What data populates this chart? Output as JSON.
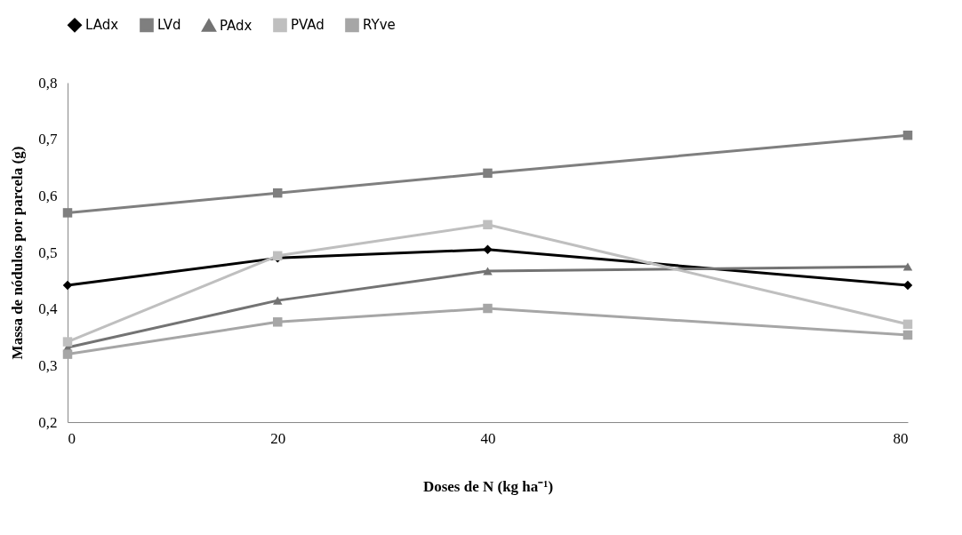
{
  "chart_data": {
    "type": "line",
    "xlabel": "Doses de N (kg ha⁻¹)",
    "ylabel": "Massa de nódulos por parcela (g)",
    "x": [
      0,
      20,
      40,
      80
    ],
    "xlim": [
      0,
      80
    ],
    "xticks": [
      0,
      20,
      40,
      80
    ],
    "ylim": [
      0.2,
      0.8
    ],
    "yticks": [
      {
        "value": 0.2,
        "label": "0,2"
      },
      {
        "value": 0.3,
        "label": "0,3"
      },
      {
        "value": 0.4,
        "label": "0,4"
      },
      {
        "value": 0.5,
        "label": "0,5"
      },
      {
        "value": 0.6,
        "label": "0,6"
      },
      {
        "value": 0.7,
        "label": "0,7"
      },
      {
        "value": 0.8,
        "label": "0,8"
      }
    ],
    "grid": false,
    "legend": "top",
    "line_style": "solid",
    "series": [
      {
        "name": "LAdx",
        "color": "#000000",
        "marker": "diamond",
        "values": [
          0.442,
          0.49,
          0.505,
          0.442
        ]
      },
      {
        "name": "LVd",
        "color": "#7f7f7f",
        "marker": "square",
        "values": [
          0.57,
          0.605,
          0.64,
          0.707
        ]
      },
      {
        "name": "PAdx",
        "color": "#737373",
        "marker": "triangle",
        "values": [
          0.332,
          0.415,
          0.467,
          0.475
        ]
      },
      {
        "name": "PVAd",
        "color": "#bfbfbf",
        "marker": "square",
        "values": [
          0.342,
          0.494,
          0.549,
          0.373
        ]
      },
      {
        "name": "RYve",
        "color": "#a6a6a6",
        "marker": "square",
        "values": [
          0.32,
          0.377,
          0.401,
          0.354
        ]
      }
    ]
  }
}
